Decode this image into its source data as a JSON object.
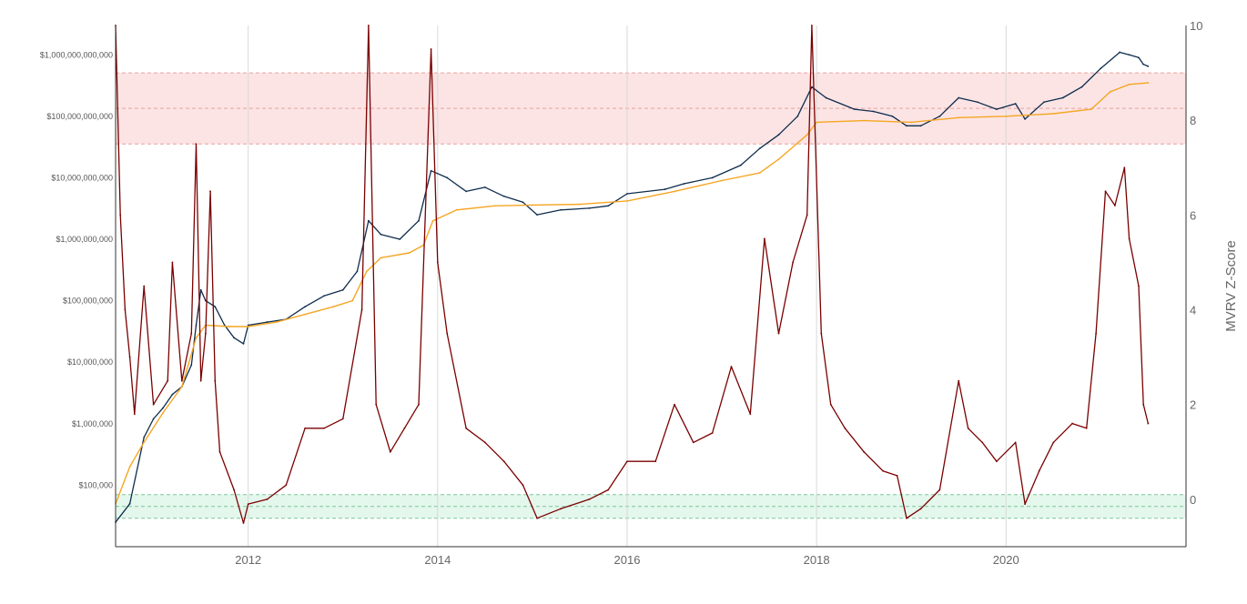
{
  "chart_data": {
    "type": "line",
    "title": "",
    "xlabel": "",
    "y_left": {
      "scale": "log",
      "min": 10000,
      "max": 3000000000000,
      "tick_values": [
        100000,
        1000000,
        10000000,
        100000000,
        1000000000,
        10000000000,
        100000000000,
        1000000000000
      ],
      "tick_labels": [
        "$100,000",
        "$1,000,000",
        "$10,000,000",
        "$100,000,000",
        "$1,000,000,000",
        "$10,000,000,000",
        "$100,000,000,000",
        "$1,000,000,000,000"
      ]
    },
    "y_right": {
      "label": "MVRV Z-Score",
      "min": -1,
      "max": 10,
      "tick_values": [
        0,
        2,
        4,
        6,
        8,
        10
      ],
      "tick_labels": [
        "0",
        "2",
        "4",
        "6",
        "8",
        "10"
      ]
    },
    "x": {
      "min": 2010.6,
      "max": 2021.9,
      "tick_values": [
        2012,
        2014,
        2016,
        2018,
        2020
      ],
      "tick_labels": [
        "2012",
        "2014",
        "2016",
        "2018",
        "2020"
      ]
    },
    "grid": "vertical lines at x ticks",
    "bands": [
      {
        "name": "high",
        "axis": "right",
        "from": 7.5,
        "to": 9.0,
        "mid": 8.25,
        "color": "#fce4e4",
        "line_color": "#e8a0a0"
      },
      {
        "name": "low",
        "axis": "right",
        "from": -0.4,
        "to": 0.1,
        "mid": -0.15,
        "color": "#e4f7ec",
        "line_color": "#7bc79a"
      }
    ],
    "series": [
      {
        "name": "",
        "axis": "left",
        "color": "#0e2c4d",
        "points": [
          [
            2010.6,
            25000
          ],
          [
            2010.75,
            50000
          ],
          [
            2010.9,
            600000
          ],
          [
            2011.0,
            1200000
          ],
          [
            2011.1,
            1800000
          ],
          [
            2011.2,
            3000000
          ],
          [
            2011.3,
            4000000
          ],
          [
            2011.4,
            9000000
          ],
          [
            2011.45,
            40000000
          ],
          [
            2011.5,
            150000000
          ],
          [
            2011.55,
            100000000
          ],
          [
            2011.65,
            80000000
          ],
          [
            2011.75,
            40000000
          ],
          [
            2011.85,
            25000000
          ],
          [
            2011.95,
            20000000
          ],
          [
            2012.0,
            40000000
          ],
          [
            2012.2,
            45000000
          ],
          [
            2012.4,
            50000000
          ],
          [
            2012.6,
            80000000
          ],
          [
            2012.8,
            120000000
          ],
          [
            2013.0,
            150000000
          ],
          [
            2013.15,
            300000000
          ],
          [
            2013.27,
            2000000000
          ],
          [
            2013.4,
            1200000000
          ],
          [
            2013.6,
            1000000000
          ],
          [
            2013.8,
            2000000000
          ],
          [
            2013.93,
            13000000000
          ],
          [
            2014.1,
            10000000000
          ],
          [
            2014.3,
            6000000000
          ],
          [
            2014.5,
            7000000000
          ],
          [
            2014.7,
            5000000000
          ],
          [
            2014.9,
            4000000000
          ],
          [
            2015.05,
            2500000000
          ],
          [
            2015.3,
            3000000000
          ],
          [
            2015.6,
            3200000000
          ],
          [
            2015.8,
            3500000000
          ],
          [
            2016.0,
            5500000000
          ],
          [
            2016.4,
            6500000000
          ],
          [
            2016.6,
            8000000000
          ],
          [
            2016.9,
            10000000000
          ],
          [
            2017.2,
            16000000000
          ],
          [
            2017.4,
            30000000000
          ],
          [
            2017.6,
            50000000000
          ],
          [
            2017.8,
            100000000000
          ],
          [
            2017.95,
            300000000000
          ],
          [
            2018.1,
            200000000000
          ],
          [
            2018.4,
            130000000000
          ],
          [
            2018.6,
            120000000000
          ],
          [
            2018.8,
            100000000000
          ],
          [
            2018.95,
            70000000000
          ],
          [
            2019.1,
            70000000000
          ],
          [
            2019.3,
            100000000000
          ],
          [
            2019.5,
            200000000000
          ],
          [
            2019.7,
            170000000000
          ],
          [
            2019.9,
            130000000000
          ],
          [
            2020.1,
            160000000000
          ],
          [
            2020.2,
            90000000000
          ],
          [
            2020.4,
            170000000000
          ],
          [
            2020.6,
            200000000000
          ],
          [
            2020.8,
            300000000000
          ],
          [
            2021.0,
            600000000000
          ],
          [
            2021.2,
            1100000000000
          ],
          [
            2021.3,
            1000000000000
          ],
          [
            2021.4,
            900000000000
          ],
          [
            2021.45,
            700000000000
          ],
          [
            2021.5,
            650000000000
          ]
        ]
      },
      {
        "name": "",
        "axis": "left",
        "color": "#f5a623",
        "points": [
          [
            2010.6,
            50000
          ],
          [
            2010.75,
            200000
          ],
          [
            2010.9,
            500000
          ],
          [
            2011.1,
            1500000
          ],
          [
            2011.3,
            4000000
          ],
          [
            2011.45,
            25000000
          ],
          [
            2011.55,
            40000000
          ],
          [
            2011.8,
            38000000
          ],
          [
            2012.0,
            38000000
          ],
          [
            2012.3,
            45000000
          ],
          [
            2012.6,
            60000000
          ],
          [
            2012.9,
            80000000
          ],
          [
            2013.1,
            100000000
          ],
          [
            2013.25,
            300000000
          ],
          [
            2013.4,
            500000000
          ],
          [
            2013.7,
            600000000
          ],
          [
            2013.85,
            800000000
          ],
          [
            2013.95,
            2000000000
          ],
          [
            2014.2,
            3000000000
          ],
          [
            2014.6,
            3500000000
          ],
          [
            2015.0,
            3600000000
          ],
          [
            2015.5,
            3700000000
          ],
          [
            2016.0,
            4200000000
          ],
          [
            2016.5,
            6000000000
          ],
          [
            2017.0,
            9000000000
          ],
          [
            2017.4,
            12000000000
          ],
          [
            2017.6,
            20000000000
          ],
          [
            2017.9,
            50000000000
          ],
          [
            2018.0,
            80000000000
          ],
          [
            2018.5,
            85000000000
          ],
          [
            2019.0,
            80000000000
          ],
          [
            2019.5,
            95000000000
          ],
          [
            2020.0,
            100000000000
          ],
          [
            2020.5,
            110000000000
          ],
          [
            2020.9,
            130000000000
          ],
          [
            2021.1,
            250000000000
          ],
          [
            2021.3,
            330000000000
          ],
          [
            2021.5,
            350000000000
          ]
        ]
      },
      {
        "name": "",
        "axis": "right",
        "color": "#7a0000",
        "points": [
          [
            2010.6,
            10
          ],
          [
            2010.65,
            6
          ],
          [
            2010.7,
            4
          ],
          [
            2010.75,
            3
          ],
          [
            2010.8,
            1.8
          ],
          [
            2010.9,
            4.5
          ],
          [
            2011.0,
            2.0
          ],
          [
            2011.15,
            2.5
          ],
          [
            2011.2,
            5.0
          ],
          [
            2011.3,
            2.5
          ],
          [
            2011.4,
            3.5
          ],
          [
            2011.45,
            7.5
          ],
          [
            2011.5,
            2.5
          ],
          [
            2011.55,
            3.5
          ],
          [
            2011.6,
            6.5
          ],
          [
            2011.65,
            2.5
          ],
          [
            2011.7,
            1.0
          ],
          [
            2011.85,
            0.2
          ],
          [
            2011.95,
            -0.5
          ],
          [
            2012.0,
            -0.1
          ],
          [
            2012.2,
            0.0
          ],
          [
            2012.4,
            0.3
          ],
          [
            2012.6,
            1.5
          ],
          [
            2012.8,
            1.5
          ],
          [
            2013.0,
            1.7
          ],
          [
            2013.2,
            4.0
          ],
          [
            2013.27,
            10
          ],
          [
            2013.35,
            2.0
          ],
          [
            2013.5,
            1.0
          ],
          [
            2013.65,
            1.5
          ],
          [
            2013.8,
            2.0
          ],
          [
            2013.93,
            9.5
          ],
          [
            2014.0,
            5.0
          ],
          [
            2014.1,
            3.5
          ],
          [
            2014.3,
            1.5
          ],
          [
            2014.5,
            1.2
          ],
          [
            2014.7,
            0.8
          ],
          [
            2014.9,
            0.3
          ],
          [
            2015.05,
            -0.4
          ],
          [
            2015.3,
            -0.2
          ],
          [
            2015.6,
            0.0
          ],
          [
            2015.8,
            0.2
          ],
          [
            2016.0,
            0.8
          ],
          [
            2016.3,
            0.8
          ],
          [
            2016.5,
            2.0
          ],
          [
            2016.7,
            1.2
          ],
          [
            2016.9,
            1.4
          ],
          [
            2017.1,
            2.8
          ],
          [
            2017.3,
            1.8
          ],
          [
            2017.45,
            5.5
          ],
          [
            2017.6,
            3.5
          ],
          [
            2017.75,
            5.0
          ],
          [
            2017.9,
            6.0
          ],
          [
            2017.95,
            10
          ],
          [
            2018.05,
            3.5
          ],
          [
            2018.15,
            2.0
          ],
          [
            2018.3,
            1.5
          ],
          [
            2018.5,
            1.0
          ],
          [
            2018.7,
            0.6
          ],
          [
            2018.85,
            0.5
          ],
          [
            2018.95,
            -0.4
          ],
          [
            2019.1,
            -0.2
          ],
          [
            2019.3,
            0.2
          ],
          [
            2019.5,
            2.5
          ],
          [
            2019.6,
            1.5
          ],
          [
            2019.75,
            1.2
          ],
          [
            2019.9,
            0.8
          ],
          [
            2020.1,
            1.2
          ],
          [
            2020.2,
            -0.1
          ],
          [
            2020.35,
            0.6
          ],
          [
            2020.5,
            1.2
          ],
          [
            2020.7,
            1.6
          ],
          [
            2020.85,
            1.5
          ],
          [
            2020.95,
            3.5
          ],
          [
            2021.05,
            6.5
          ],
          [
            2021.15,
            6.2
          ],
          [
            2021.25,
            7.0
          ],
          [
            2021.3,
            5.5
          ],
          [
            2021.4,
            4.5
          ],
          [
            2021.45,
            2.0
          ],
          [
            2021.5,
            1.6
          ]
        ]
      }
    ],
    "overlay_color_in_band": "#8a8a9e"
  }
}
